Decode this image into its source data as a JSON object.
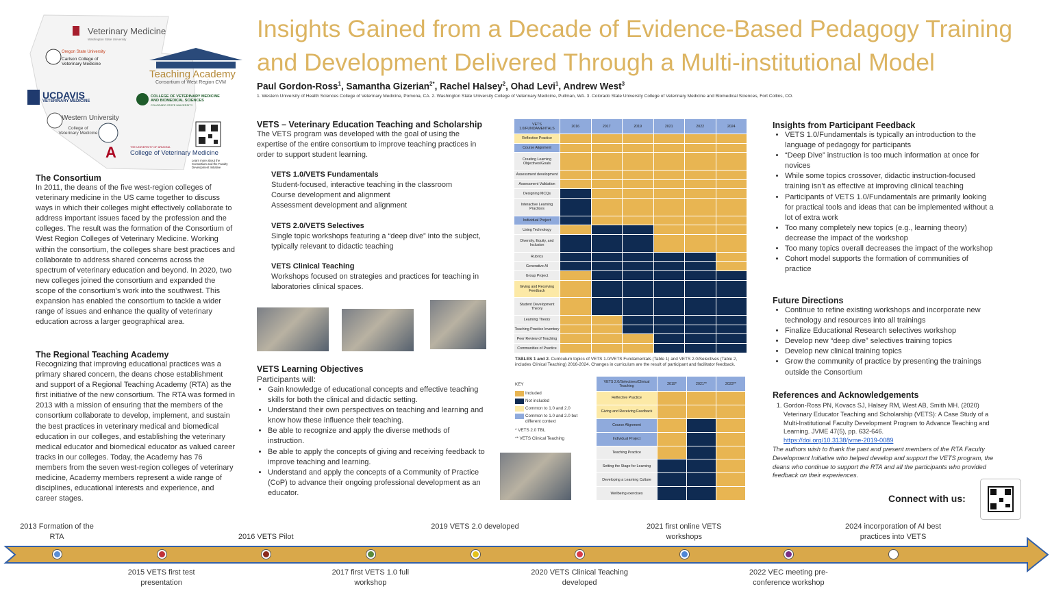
{
  "logos": [
    {
      "text": "Veterinary Medicine"
    },
    {
      "text": "Washington State University"
    },
    {
      "text": "Oregon State University"
    },
    {
      "text": "Carlson College of Veterinary Medicine"
    },
    {
      "text": "Teaching Academy"
    },
    {
      "text": "Consortium of West Region CVM"
    },
    {
      "text": "UCDAVIS"
    },
    {
      "text": "VETERINARY MEDICINE"
    },
    {
      "text": "COLLEGE OF VETERINARY MEDICINE AND BIOMEDICAL SCIENCES"
    },
    {
      "text": "COLORADO STATE UNIVERSITY"
    },
    {
      "text": "Western University"
    },
    {
      "text": "College of Veterinary Medicine"
    },
    {
      "text": "THE UNIVERSITY OF ARIZONA"
    },
    {
      "text": "College of Veterinary Medicine"
    },
    {
      "text": "Learn more about the Consortium and the Faculty Development Initiative"
    }
  ],
  "title": [
    "Insights Gained from a Decade of Evidence-Based Pedagogy Training",
    "and Development Delivered Through a Multi-institutional Model"
  ],
  "authors": [
    {
      "name": "Paul Gordon-Ross",
      "sup": "1"
    },
    {
      "name": ", Samantha Gizerian",
      "sup": "2*"
    },
    {
      "name": ", Rachel Halsey",
      "sup": "2"
    },
    {
      "name": ", Ohad Levi",
      "sup": "1"
    },
    {
      "name": ", Andrew West",
      "sup": "3"
    }
  ],
  "affiliations": "1. Western University of Health Sciences College of Veterinary Medicine, Pomona, CA.  2. Washington State University College of Veterinary Medicine, Pullman, WA.  3. Colorado State University College of Veterinary Medicine and Biomedical Sciences, Fort Collins, CO.",
  "consortium": {
    "heading": "The Consortium",
    "text": "In 2011, the deans of the five west-region colleges of veterinary medicine in the US came together to discuss ways in which their colleges might effectively collaborate to address important issues faced by the profession and the colleges. The result was the formation of the Consortium of West Region Colleges of Veterinary Medicine. Working within the consortium, the colleges share best practices and collaborate to address shared concerns across the spectrum of veterinary education and beyond.  In 2020, two new colleges joined the consortium and expanded the scope of the consortium's work into the southwest. This expansion has enabled the consortium to tackle a wider range of issues and enhance the quality of veterinary education across a larger geographical area."
  },
  "academy": {
    "heading": "The Regional Teaching Academy",
    "text": "Recognizing that improving educational practices was a primary shared concern, the deans chose establishment and support of a Regional Teaching Academy (RTA) as the first initiative of the new consortium.  The RTA was formed in 2013 with a mission of ensuring that the members of the consortium collaborate to develop, implement, and sustain the best practices in veterinary medical and biomedical education in our colleges, and establishing the veterinary medical educator and biomedical educator as valued career tracks in our colleges. Today, the Academy has 76 members from the seven west-region colleges of veterinary medicine, Academy members represent a wide range of disciplines, educational interests and experience, and career stages."
  },
  "vets": {
    "heading": "VETS – Veterinary Education Teaching and Scholarship",
    "text": "The VETS program was developed with the goal of using the expertise of the entire consortium to improve teaching practices in order to support student learning.",
    "programs": [
      {
        "name": "VETS 1.0/VETS Fundamentals",
        "lines": [
          "Student-focused, interactive teaching in the classroom",
          "Course development and alignment",
          "Assessment development and alignment"
        ]
      },
      {
        "name": "VETS 2.0/VETS Selectives",
        "lines": [
          "Single topic workshops featuring a “deep dive” into the subject, typically relevant to didactic teaching"
        ]
      },
      {
        "name": "VETS Clinical Teaching",
        "lines": [
          "Workshops focused on strategies and practices for teaching in laboratories clinical spaces."
        ]
      }
    ]
  },
  "objectives": {
    "heading": "VETS Learning Objectives",
    "intro": "Participants will:",
    "items": [
      "Gain knowledge of educational concepts and effective teaching skills for both the clinical and didactic setting.",
      "Understand their own perspectives on teaching and learning and know how these influence their teaching.",
      "Be able to recognize and apply the diverse methods of instruction.",
      "Be able to apply the concepts of giving and receiving feedback to improve teaching and learning.",
      "Understand and apply the concepts of a Community of Practice (CoP) to advance their ongoing professional development as an educator."
    ]
  },
  "table1": {
    "header": [
      "VETS 1.0/FUNDAMENTALS",
      "2016",
      "2017",
      "2019",
      "2021",
      "2022",
      "2024"
    ],
    "rows": [
      {
        "label": "Reflective Practice",
        "label_color": "#fce9a6",
        "cells": [
          "#e8b552",
          "#e8b552",
          "#e8b552",
          "#e8b552",
          "#e8b552",
          "#e8b552"
        ]
      },
      {
        "label": "Course Alignment",
        "label_color": "#8faadc",
        "cells": [
          "#e8b552",
          "#e8b552",
          "#e8b552",
          "#e8b552",
          "#e8b552",
          "#e8b552"
        ]
      },
      {
        "label": "Creating Learning Objectives/Goals",
        "label_color": "#ededed",
        "cells": [
          "#e8b552",
          "#e8b552",
          "#e8b552",
          "#e8b552",
          "#e8b552",
          "#e8b552"
        ]
      },
      {
        "label": "Assessment development",
        "label_color": "#ededed",
        "cells": [
          "#e8b552",
          "#e8b552",
          "#e8b552",
          "#e8b552",
          "#e8b552",
          "#e8b552"
        ]
      },
      {
        "label": "Assessment Validation",
        "label_color": "#ededed",
        "cells": [
          "#e8b552",
          "#e8b552",
          "#e8b552",
          "#e8b552",
          "#e8b552",
          "#e8b552"
        ]
      },
      {
        "label": "Designing MCQs",
        "label_color": "#ededed",
        "cells": [
          "#0f2b52",
          "#e8b552",
          "#e8b552",
          "#e8b552",
          "#e8b552",
          "#e8b552"
        ]
      },
      {
        "label": "Interactive Learning Practices",
        "label_color": "#ededed",
        "cells": [
          "#0f2b52",
          "#e8b552",
          "#e8b552",
          "#e8b552",
          "#e8b552",
          "#e8b552"
        ]
      },
      {
        "label": "Individual Project",
        "label_color": "#8faadc",
        "cells": [
          "#0f2b52",
          "#e8b552",
          "#e8b552",
          "#e8b552",
          "#e8b552",
          "#e8b552"
        ]
      },
      {
        "label": "Using Technology",
        "label_color": "#ededed",
        "cells": [
          "#e8b552",
          "#0f2b52",
          "#0f2b52",
          "#e8b552",
          "#e8b552",
          "#e8b552"
        ]
      },
      {
        "label": "Diversity, Equity, and Inclusion",
        "label_color": "#ededed",
        "cells": [
          "#0f2b52",
          "#0f2b52",
          "#0f2b52",
          "#e8b552",
          "#e8b552",
          "#e8b552"
        ]
      },
      {
        "label": "Rubrics",
        "label_color": "#ededed",
        "cells": [
          "#0f2b52",
          "#0f2b52",
          "#0f2b52",
          "#0f2b52",
          "#0f2b52",
          "#e8b552"
        ]
      },
      {
        "label": "Generative AI",
        "label_color": "#ededed",
        "cells": [
          "#0f2b52",
          "#0f2b52",
          "#0f2b52",
          "#0f2b52",
          "#0f2b52",
          "#e8b552"
        ]
      },
      {
        "label": "Group Project",
        "label_color": "#ededed",
        "cells": [
          "#e8b552",
          "#0f2b52",
          "#0f2b52",
          "#0f2b52",
          "#0f2b52",
          "#0f2b52"
        ]
      },
      {
        "label": "Giving and Receiving Feedback",
        "label_color": "#fce9a6",
        "cells": [
          "#e8b552",
          "#0f2b52",
          "#0f2b52",
          "#0f2b52",
          "#0f2b52",
          "#0f2b52"
        ]
      },
      {
        "label": "Student Development Theory",
        "label_color": "#ededed",
        "cells": [
          "#e8b552",
          "#0f2b52",
          "#0f2b52",
          "#0f2b52",
          "#0f2b52",
          "#0f2b52"
        ]
      },
      {
        "label": "Learning Theory",
        "label_color": "#ededed",
        "cells": [
          "#e8b552",
          "#e8b552",
          "#0f2b52",
          "#0f2b52",
          "#0f2b52",
          "#0f2b52"
        ]
      },
      {
        "label": "Teaching Practice Inventory",
        "label_color": "#ededed",
        "cells": [
          "#e8b552",
          "#e8b552",
          "#0f2b52",
          "#0f2b52",
          "#0f2b52",
          "#0f2b52"
        ]
      },
      {
        "label": "Peer Review of Teaching",
        "label_color": "#ededed",
        "cells": [
          "#e8b552",
          "#e8b552",
          "#e8b552",
          "#0f2b52",
          "#0f2b52",
          "#0f2b52"
        ]
      },
      {
        "label": "Communities of Practice",
        "label_color": "#ededed",
        "cells": [
          "#e8b552",
          "#e8b552",
          "#e8b552",
          "#0f2b52",
          "#0f2b52",
          "#0f2b52"
        ]
      }
    ]
  },
  "caption": {
    "bold": "TABLES 1 and 2.",
    "text": "Curriculum topics of VETS 1.0/VETS Fundamentals (Table 1) and VETS 2.0/Selectives (Table 2, includes Clinical Teaching) 2016-2024. Changes in curriculum are the result of participant and facilitator feedback."
  },
  "key": {
    "title": "KEY",
    "items": [
      {
        "label": "Included",
        "color": "#e8b552"
      },
      {
        "label": "Not included",
        "color": "#0f2b52"
      },
      {
        "label": "Common to 1.0 and 2.0",
        "color": "#fce9a6"
      },
      {
        "label": "Common to 1.0 and 2.0 but different context",
        "color": "#8faadc"
      }
    ],
    "notes": [
      "* VETS 2.0 TBL",
      "** VETS Clinical Teaching"
    ]
  },
  "table2": {
    "header": [
      "VETS 2.0/Selectives/Clinical Teaching",
      "2019*",
      "2021**",
      "2023**"
    ],
    "rows": [
      {
        "label": "Reflective Practice",
        "label_color": "#fce9a6",
        "cells": [
          "#e8b552",
          "#e8b552",
          "#e8b552"
        ]
      },
      {
        "label": "Giving and Receiving Feedback",
        "label_color": "#fce9a6",
        "cells": [
          "#e8b552",
          "#e8b552",
          "#e8b552"
        ]
      },
      {
        "label": "Course Alignment",
        "label_color": "#8faadc",
        "cells": [
          "#e8b552",
          "#0f2b52",
          "#e8b552"
        ]
      },
      {
        "label": "Individual Project",
        "label_color": "#8faadc",
        "cells": [
          "#e8b552",
          "#0f2b52",
          "#e8b552"
        ]
      },
      {
        "label": "Teaching Practice",
        "label_color": "#ededed",
        "cells": [
          "#e8b552",
          "#0f2b52",
          "#e8b552"
        ]
      },
      {
        "label": "Setting the Stage for Learning",
        "label_color": "#ededed",
        "cells": [
          "#0f2b52",
          "#0f2b52",
          "#e8b552"
        ]
      },
      {
        "label": "Developing a Learning Culture",
        "label_color": "#ededed",
        "cells": [
          "#0f2b52",
          "#0f2b52",
          "#e8b552"
        ]
      },
      {
        "label": "Wellbeing exercises",
        "label_color": "#ededed",
        "cells": [
          "#0f2b52",
          "#0f2b52",
          "#e8b552"
        ]
      }
    ]
  },
  "insights": {
    "heading": "Insights from Participant Feedback",
    "items": [
      "VETS 1.0/Fundamentals is typically an introduction to the language of pedagogy for participants",
      "“Deep Dive” instruction is too much information at once for novices",
      "While some topics crossover, didactic instruction-focused training isn’t as effective at improving clinical teaching",
      "Participants of VETS 1.0/Fundamentals are primarily looking for practical tools and ideas that can be implemented without a lot of extra work",
      "Too many completely new topics (e.g., learning theory) decrease the impact of the workshop",
      "Too many topics overall decreases the impact of the workshop",
      "Cohort model supports the formation of communities of practice"
    ]
  },
  "future": {
    "heading": "Future Directions",
    "items": [
      "Continue to refine existing workshops and incorporate new technology and resources into all trainings",
      "Finalize Educational Research selectives workshop",
      "Develop new “deep dive” selectives training topics",
      "Develop new clinical training topics",
      "Grow the community of practice by presenting the trainings outside the Consortium"
    ]
  },
  "references": {
    "heading": "References and Acknowledgements",
    "items": [
      {
        "text": "Gordon-Ross PN, Kovacs SJ, Halsey RM, West AB, Smith MH. (2020) Veterinary Educator Teaching and Scholarship (VETS): A Case Study of a Multi-Institutional Faculty Development Program to Advance Teaching and Learning.  JVME 47(5), pp. 632-646.",
        "doi": "https://doi.org/10.3138/jvme-2019-0089"
      }
    ],
    "acknowledgment": "The authors wish to thank the past and present members of the RTA Faculty Development Initiative who helped develop and support the VETS program, the deans who continue to support the RTA and all the participants who provided feedback on their experiences."
  },
  "connect": "Connect with us:",
  "timeline": {
    "events": [
      {
        "label": "2013 Formation of the RTA",
        "color": "#5b8fd6"
      },
      {
        "label": "2015 VETS first test presentation",
        "color": "#c0313a"
      },
      {
        "label": "2016 VETS Pilot",
        "color": "#8b2a1e"
      },
      {
        "label": "2017 first VETS 1.0 full workshop",
        "color": "#5a8a3a"
      },
      {
        "label": "2019 VETS 2.0 developed",
        "color": "#e4c21c"
      },
      {
        "label": "2020 VETS Clinical Teaching developed",
        "color": "#d63c4a"
      },
      {
        "label": "2021 first online VETS workshops",
        "color": "#4f86d6"
      },
      {
        "label": "2022 VEC meeting pre-conference workshop",
        "color": "#7a2e86"
      },
      {
        "label": "2024 incorporation of AI best practices into VETS",
        "color": "#ffffff"
      }
    ]
  }
}
